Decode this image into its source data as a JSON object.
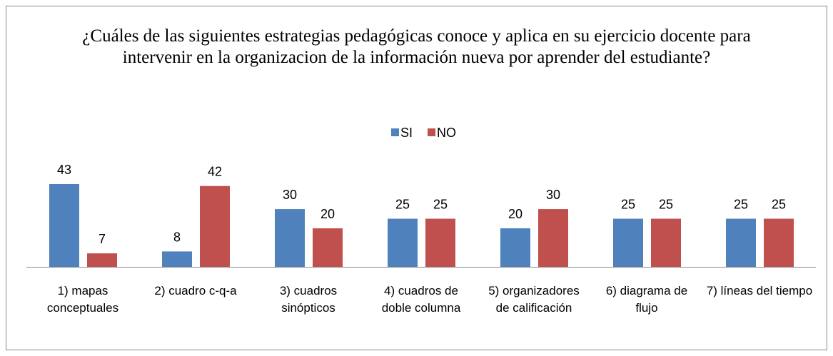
{
  "chart_data": {
    "type": "bar",
    "title": "¿Cuáles de las siguientes estrategias pedagógicas conoce y aplica en su ejercicio docente para intervenir en la organizacion de la información nueva por aprender del estudiante?",
    "categories": [
      "1) mapas conceptuales",
      "2) cuadro c-q-a",
      "3) cuadros sinópticos",
      "4) cuadros de doble columna",
      "5) organizadores de calificación",
      "6) diagrama de flujo",
      "7) líneas del tiempo"
    ],
    "series": [
      {
        "name": "SI",
        "color": "#4f81bd",
        "values": [
          43,
          8,
          30,
          25,
          20,
          25,
          25
        ]
      },
      {
        "name": "NO",
        "color": "#c0504d",
        "values": [
          7,
          42,
          20,
          25,
          30,
          25,
          25
        ]
      }
    ],
    "legend": "top"
  }
}
